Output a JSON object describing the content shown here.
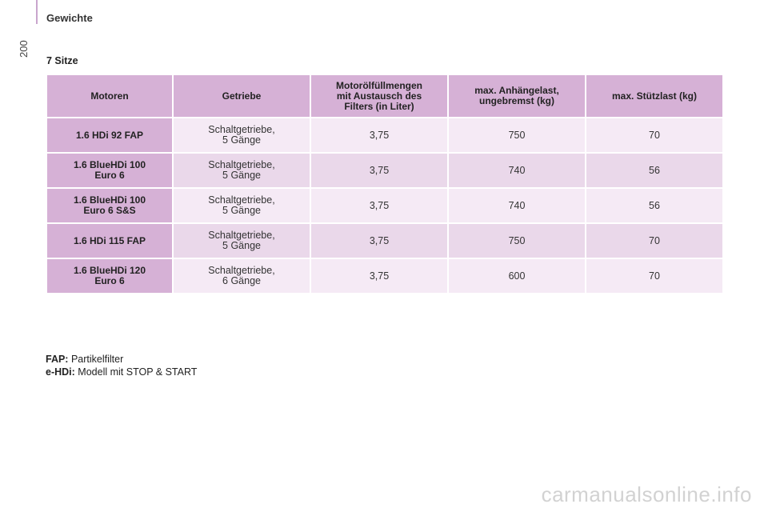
{
  "header": {
    "section_title": "Gewichte",
    "page_number": "200"
  },
  "subtitle": "7 Sitze",
  "table": {
    "columns": [
      [
        "Motoren"
      ],
      [
        "Getriebe"
      ],
      [
        "Motorölfüllmengen",
        "mit Austausch des",
        "Filters (in Liter)"
      ],
      [
        "max. Anhängelast,",
        "ungebremst (kg)"
      ],
      [
        "max. Stützlast (kg)"
      ]
    ],
    "rows": [
      {
        "motor": [
          "1.6 HDi 92 FAP"
        ],
        "getriebe": [
          "Schaltgetriebe,",
          "5 Gänge"
        ],
        "oel": "3,75",
        "anhaengelast": "750",
        "stuetzlast": "70"
      },
      {
        "motor": [
          "1.6 BlueHDi 100",
          "Euro 6"
        ],
        "getriebe": [
          "Schaltgetriebe,",
          "5 Gänge"
        ],
        "oel": "3,75",
        "anhaengelast": "740",
        "stuetzlast": "56"
      },
      {
        "motor": [
          "1.6 BlueHDi 100",
          "Euro 6 S&S"
        ],
        "getriebe": [
          "Schaltgetriebe,",
          "5 Gänge"
        ],
        "oel": "3,75",
        "anhaengelast": "740",
        "stuetzlast": "56"
      },
      {
        "motor": [
          "1.6 HDi 115 FAP"
        ],
        "getriebe": [
          "Schaltgetriebe,",
          "5 Gänge"
        ],
        "oel": "3,75",
        "anhaengelast": "750",
        "stuetzlast": "70"
      },
      {
        "motor": [
          "1.6 BlueHDi 120",
          "Euro 6"
        ],
        "getriebe": [
          "Schaltgetriebe,",
          "6 Gänge"
        ],
        "oel": "3,75",
        "anhaengelast": "600",
        "stuetzlast": "70"
      }
    ]
  },
  "footnotes": [
    {
      "key": "FAP:",
      "text": "Partikelfilter"
    },
    {
      "key": "e-HDi:",
      "text": "Modell mit STOP & START"
    }
  ],
  "watermark": "carmanualsonline.info",
  "colors": {
    "header_cell": "#d6b1d6",
    "row_light": "#f5eaf5",
    "row_dark": "#ead8ea",
    "accent_rule": "#c9a5cd"
  }
}
